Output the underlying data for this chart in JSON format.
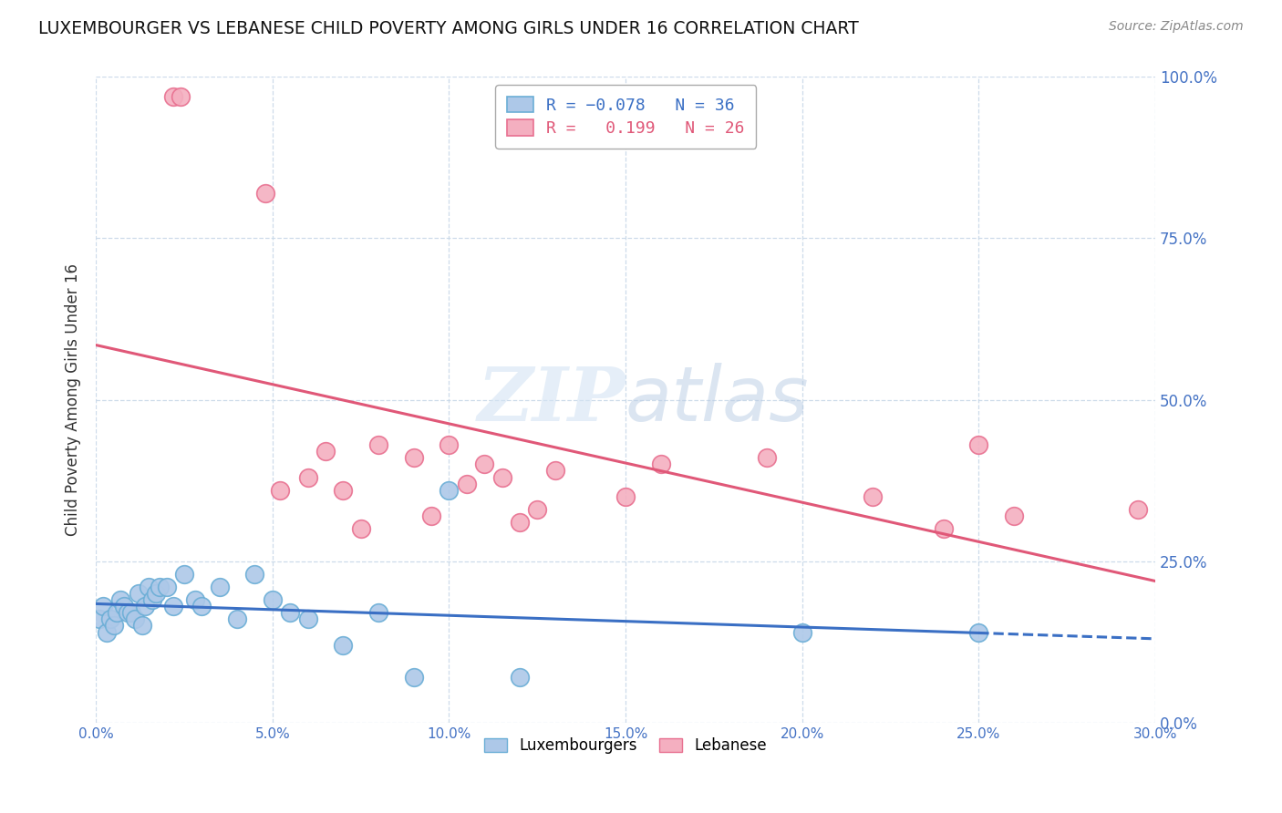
{
  "title": "LUXEMBOURGER VS LEBANESE CHILD POVERTY AMONG GIRLS UNDER 16 CORRELATION CHART",
  "source": "Source: ZipAtlas.com",
  "ylabel_left": "Child Poverty Among Girls Under 16",
  "xlim": [
    0.0,
    0.3
  ],
  "ylim": [
    0.0,
    1.0
  ],
  "lux_R": -0.078,
  "lux_N": 36,
  "leb_R": 0.199,
  "leb_N": 26,
  "lux_color": "#adc8e8",
  "leb_color": "#f4afc0",
  "lux_edge_color": "#6baed6",
  "leb_edge_color": "#e87090",
  "lux_trend_color": "#3a6fc4",
  "leb_trend_color": "#e05878",
  "watermark_color": "#d0dff0",
  "lux_points_x": [
    0.001,
    0.002,
    0.003,
    0.004,
    0.005,
    0.006,
    0.007,
    0.008,
    0.009,
    0.01,
    0.011,
    0.012,
    0.013,
    0.014,
    0.015,
    0.016,
    0.017,
    0.018,
    0.02,
    0.022,
    0.025,
    0.028,
    0.03,
    0.035,
    0.04,
    0.045,
    0.05,
    0.055,
    0.06,
    0.07,
    0.08,
    0.09,
    0.1,
    0.12,
    0.2,
    0.25
  ],
  "lux_points_y": [
    0.16,
    0.18,
    0.14,
    0.16,
    0.15,
    0.17,
    0.19,
    0.18,
    0.17,
    0.17,
    0.16,
    0.2,
    0.15,
    0.18,
    0.21,
    0.19,
    0.2,
    0.21,
    0.21,
    0.18,
    0.23,
    0.19,
    0.18,
    0.21,
    0.16,
    0.23,
    0.19,
    0.17,
    0.16,
    0.12,
    0.17,
    0.07,
    0.36,
    0.07,
    0.14,
    0.14
  ],
  "leb_points_x": [
    0.022,
    0.024,
    0.048,
    0.052,
    0.06,
    0.065,
    0.07,
    0.075,
    0.08,
    0.09,
    0.095,
    0.1,
    0.105,
    0.11,
    0.115,
    0.12,
    0.125,
    0.13,
    0.15,
    0.16,
    0.19,
    0.22,
    0.24,
    0.25,
    0.26,
    0.295
  ],
  "leb_points_y": [
    0.97,
    0.97,
    0.82,
    0.36,
    0.38,
    0.42,
    0.36,
    0.3,
    0.43,
    0.41,
    0.32,
    0.43,
    0.37,
    0.4,
    0.38,
    0.31,
    0.33,
    0.39,
    0.35,
    0.4,
    0.41,
    0.35,
    0.3,
    0.43,
    0.32,
    0.33
  ]
}
